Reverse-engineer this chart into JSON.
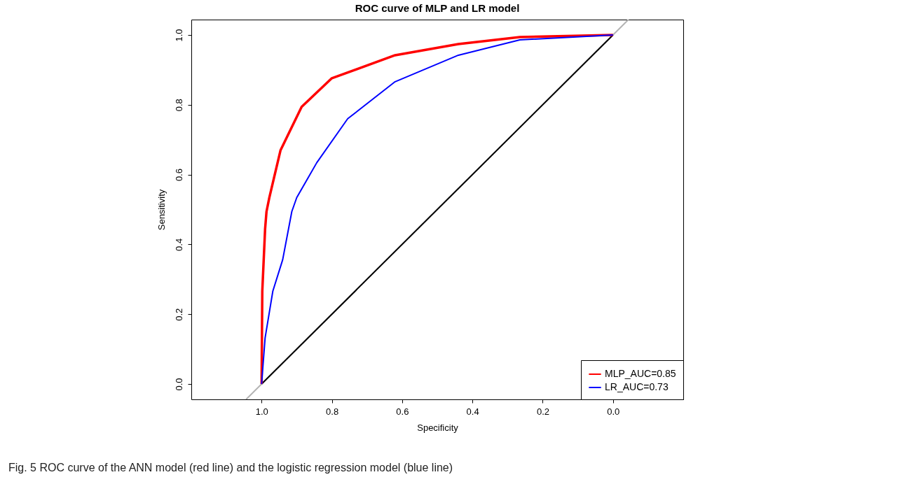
{
  "chart_data": {
    "type": "line",
    "title": "ROC curve of MLP and LR model",
    "xlabel": "Specificity",
    "ylabel": "Sensitivity",
    "xlim": [
      1.2,
      -0.2
    ],
    "ylim": [
      -0.044,
      1.044
    ],
    "xticks": [
      {
        "value": 1,
        "label": "1.0"
      },
      {
        "value": 0.8,
        "label": "0.8"
      },
      {
        "value": 0.6,
        "label": "0.6"
      },
      {
        "value": 0.4,
        "label": "0.4"
      },
      {
        "value": 0.2,
        "label": "0.2"
      },
      {
        "value": 0,
        "label": "0.0"
      }
    ],
    "yticks": [
      {
        "value": 0,
        "label": "0.0"
      },
      {
        "value": 0.2,
        "label": "0.2"
      },
      {
        "value": 0.4,
        "label": "0.4"
      },
      {
        "value": 0.6,
        "label": "0.6"
      },
      {
        "value": 0.8,
        "label": "0.8"
      },
      {
        "value": 1,
        "label": "1.0"
      }
    ],
    "grid": false,
    "legend": "bottom right",
    "marker": "none",
    "line_style": "solid",
    "series": [
      {
        "color": "#b3b3b3",
        "x": [
          1.044,
          -0.044
        ],
        "values": [
          -0.044,
          1.044
        ]
      },
      {
        "color": "#000000",
        "x": [
          1,
          0
        ],
        "values": [
          0,
          1
        ]
      },
      {
        "name": "MLP_AUC=0.85",
        "color": "#ff0000",
        "x": [
          1,
          0.998,
          0.99,
          0.986,
          0.978,
          0.946,
          0.886,
          0.8,
          0.62,
          0.44,
          0.265,
          0
        ],
        "values": [
          0,
          0.266,
          0.444,
          0.494,
          0.534,
          0.67,
          0.794,
          0.876,
          0.942,
          0.974,
          0.994,
          1
        ]
      },
      {
        "name": "LR_AUC=0.73",
        "color": "#0000ff",
        "x": [
          1,
          0.99,
          0.968,
          0.94,
          0.914,
          0.9,
          0.843,
          0.755,
          0.62,
          0.44,
          0.265,
          0
        ],
        "values": [
          0,
          0.132,
          0.266,
          0.356,
          0.494,
          0.534,
          0.634,
          0.76,
          0.866,
          0.942,
          0.986,
          1
        ]
      }
    ],
    "annotations": [
      "Fig. 5 ROC curve of the ANN model (red line) and the logistic regression model (blue line)"
    ]
  }
}
